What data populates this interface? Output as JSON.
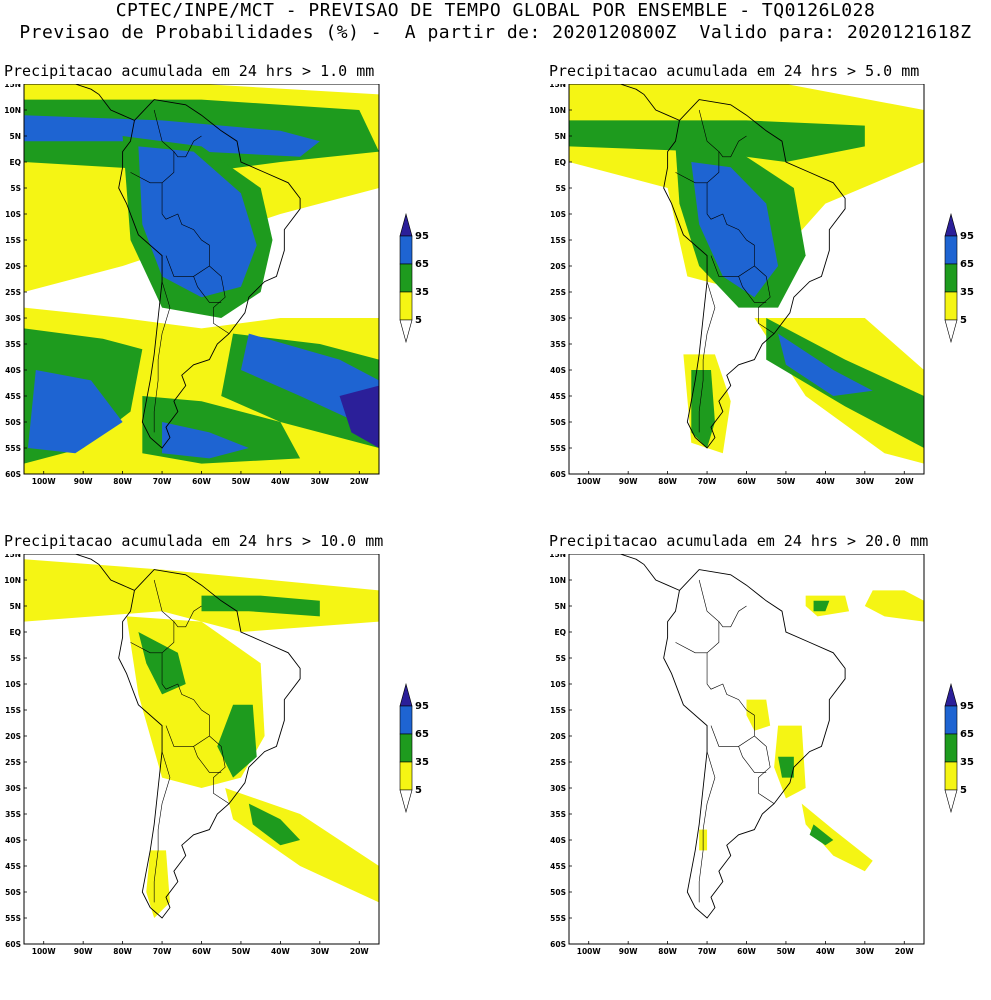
{
  "header": {
    "line1": "CPTEC/INPE/MCT - PREVISAO DE TEMPO GLOBAL POR ENSEMBLE - TQ0126L028",
    "line2": "Previsao de Probabilidades (%) -  A partir de: 2020120800Z  Valido para: 2020121618Z"
  },
  "axes": {
    "lat_labels": [
      "15N",
      "10N",
      "5N",
      "EQ",
      "5S",
      "10S",
      "15S",
      "20S",
      "25S",
      "30S",
      "35S",
      "40S",
      "45S",
      "50S",
      "55S",
      "60S"
    ],
    "lon_labels": [
      "100W",
      "90W",
      "80W",
      "70W",
      "60W",
      "50W",
      "40W",
      "30W",
      "20W"
    ]
  },
  "legend": {
    "levels": [
      "95",
      "65",
      "35",
      "5"
    ],
    "colors": {
      "c95": "#2b1f99",
      "c65": "#1e64d2",
      "c35": "#1e9b1e",
      "c5": "#f5f514",
      "land": "#ffffff",
      "line": "#000000"
    }
  },
  "panels": [
    {
      "title": "Precipitacao acumulada em 24 hrs > 1.0 mm"
    },
    {
      "title": "Precipitacao acumulada em 24 hrs > 5.0 mm"
    },
    {
      "title": "Precipitacao acumulada em 24 hrs > 10.0 mm"
    },
    {
      "title": "Precipitacao acumulada em 24 hrs > 20.0 mm"
    }
  ]
}
